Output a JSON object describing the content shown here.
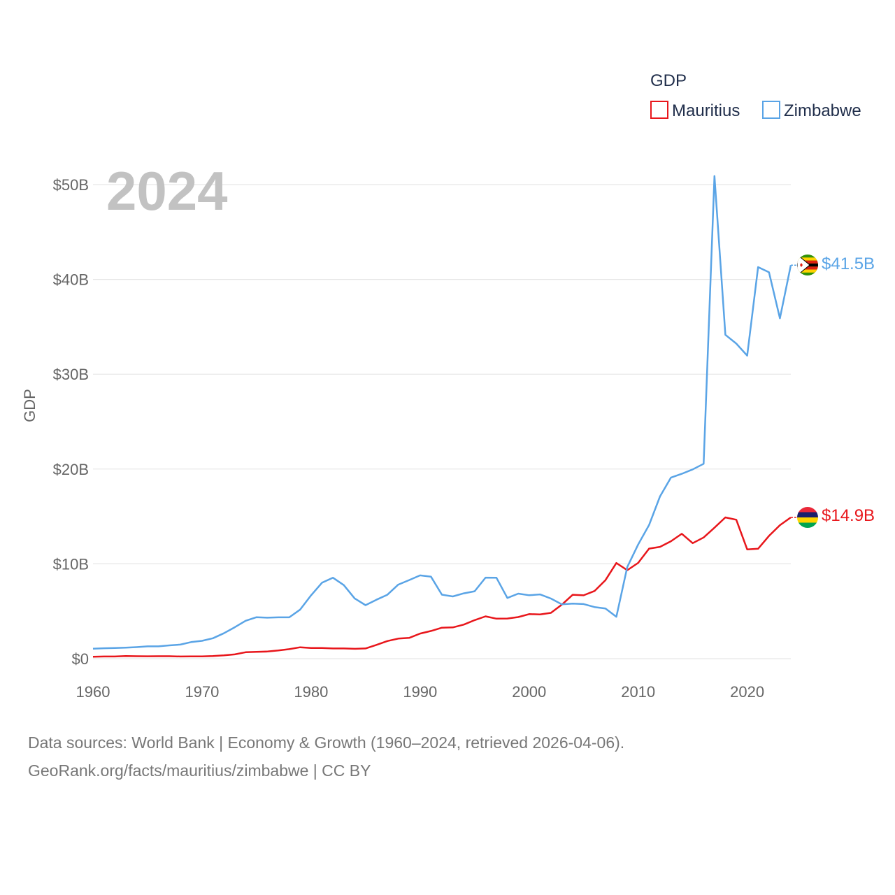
{
  "chart_data": {
    "type": "line",
    "title": "GDP",
    "ylabel": "GDP",
    "xlabel": "",
    "year_display": "2024",
    "xlim": [
      1960,
      2024
    ],
    "ylim": [
      0,
      50000000000
    ],
    "x_ticks": [
      1960,
      1970,
      1980,
      1990,
      2000,
      2010,
      2020
    ],
    "x_tick_labels": [
      "1960",
      "1970",
      "1980",
      "1990",
      "2000",
      "2010",
      "2020"
    ],
    "y_ticks": [
      0,
      10000000000,
      20000000000,
      30000000000,
      40000000000,
      50000000000
    ],
    "y_tick_labels": [
      "$0",
      "$10B",
      "$20B",
      "$30B",
      "$40B",
      "$50B"
    ],
    "grid": true,
    "legend_position": "top-right",
    "x": [
      1960,
      1961,
      1962,
      1963,
      1964,
      1965,
      1966,
      1967,
      1968,
      1969,
      1970,
      1971,
      1972,
      1973,
      1974,
      1975,
      1976,
      1977,
      1978,
      1979,
      1980,
      1981,
      1982,
      1983,
      1984,
      1985,
      1986,
      1987,
      1988,
      1989,
      1990,
      1991,
      1992,
      1993,
      1994,
      1995,
      1996,
      1997,
      1998,
      1999,
      2000,
      2001,
      2002,
      2003,
      2004,
      2005,
      2006,
      2007,
      2008,
      2009,
      2010,
      2011,
      2012,
      2013,
      2014,
      2015,
      2016,
      2017,
      2018,
      2019,
      2020,
      2021,
      2022,
      2023,
      2024
    ],
    "series": [
      {
        "name": "Mauritius",
        "color": "#e8161b",
        "end_label": "$14.9B",
        "flag": "mauritius-flag",
        "values": [
          0.2,
          0.23,
          0.23,
          0.28,
          0.26,
          0.25,
          0.26,
          0.26,
          0.23,
          0.24,
          0.24,
          0.28,
          0.35,
          0.45,
          0.68,
          0.72,
          0.75,
          0.86,
          1.0,
          1.2,
          1.13,
          1.13,
          1.08,
          1.08,
          1.04,
          1.08,
          1.45,
          1.86,
          2.12,
          2.19,
          2.65,
          2.92,
          3.27,
          3.3,
          3.59,
          4.06,
          4.46,
          4.22,
          4.23,
          4.39,
          4.7,
          4.67,
          4.83,
          5.69,
          6.74,
          6.68,
          7.14,
          8.28,
          10.09,
          9.33,
          10.1,
          11.61,
          11.79,
          12.38,
          13.17,
          12.18,
          12.78,
          13.81,
          14.9,
          14.65,
          11.53,
          11.59,
          12.95,
          14.08,
          14.9
        ]
      },
      {
        "name": "Zimbabwe",
        "color": "#5aa4e6",
        "end_label": "$41.5B",
        "flag": "zimbabwe-flag",
        "values": [
          1.05,
          1.1,
          1.12,
          1.16,
          1.22,
          1.3,
          1.3,
          1.4,
          1.48,
          1.75,
          1.88,
          2.15,
          2.68,
          3.31,
          4.0,
          4.37,
          4.32,
          4.36,
          4.36,
          5.18,
          6.68,
          8.01,
          8.54,
          7.76,
          6.35,
          5.64,
          6.22,
          6.74,
          7.81,
          8.29,
          8.78,
          8.64,
          6.75,
          6.56,
          6.89,
          7.11,
          8.55,
          8.53,
          6.4,
          6.86,
          6.69,
          6.78,
          6.34,
          5.73,
          5.81,
          5.76,
          5.44,
          5.29,
          4.42,
          9.67,
          12.04,
          14.1,
          17.11,
          19.09,
          19.5,
          19.96,
          20.55,
          50.9,
          34.16,
          33.23,
          31.96,
          41.3,
          40.75,
          35.9,
          41.5
        ]
      }
    ]
  },
  "source": {
    "line1": "Data sources: World Bank | Economy & Growth (1960–2024, retrieved 2026-04-06).",
    "line2": "GeoRank.org/facts/mauritius/zimbabwe | CC BY"
  }
}
